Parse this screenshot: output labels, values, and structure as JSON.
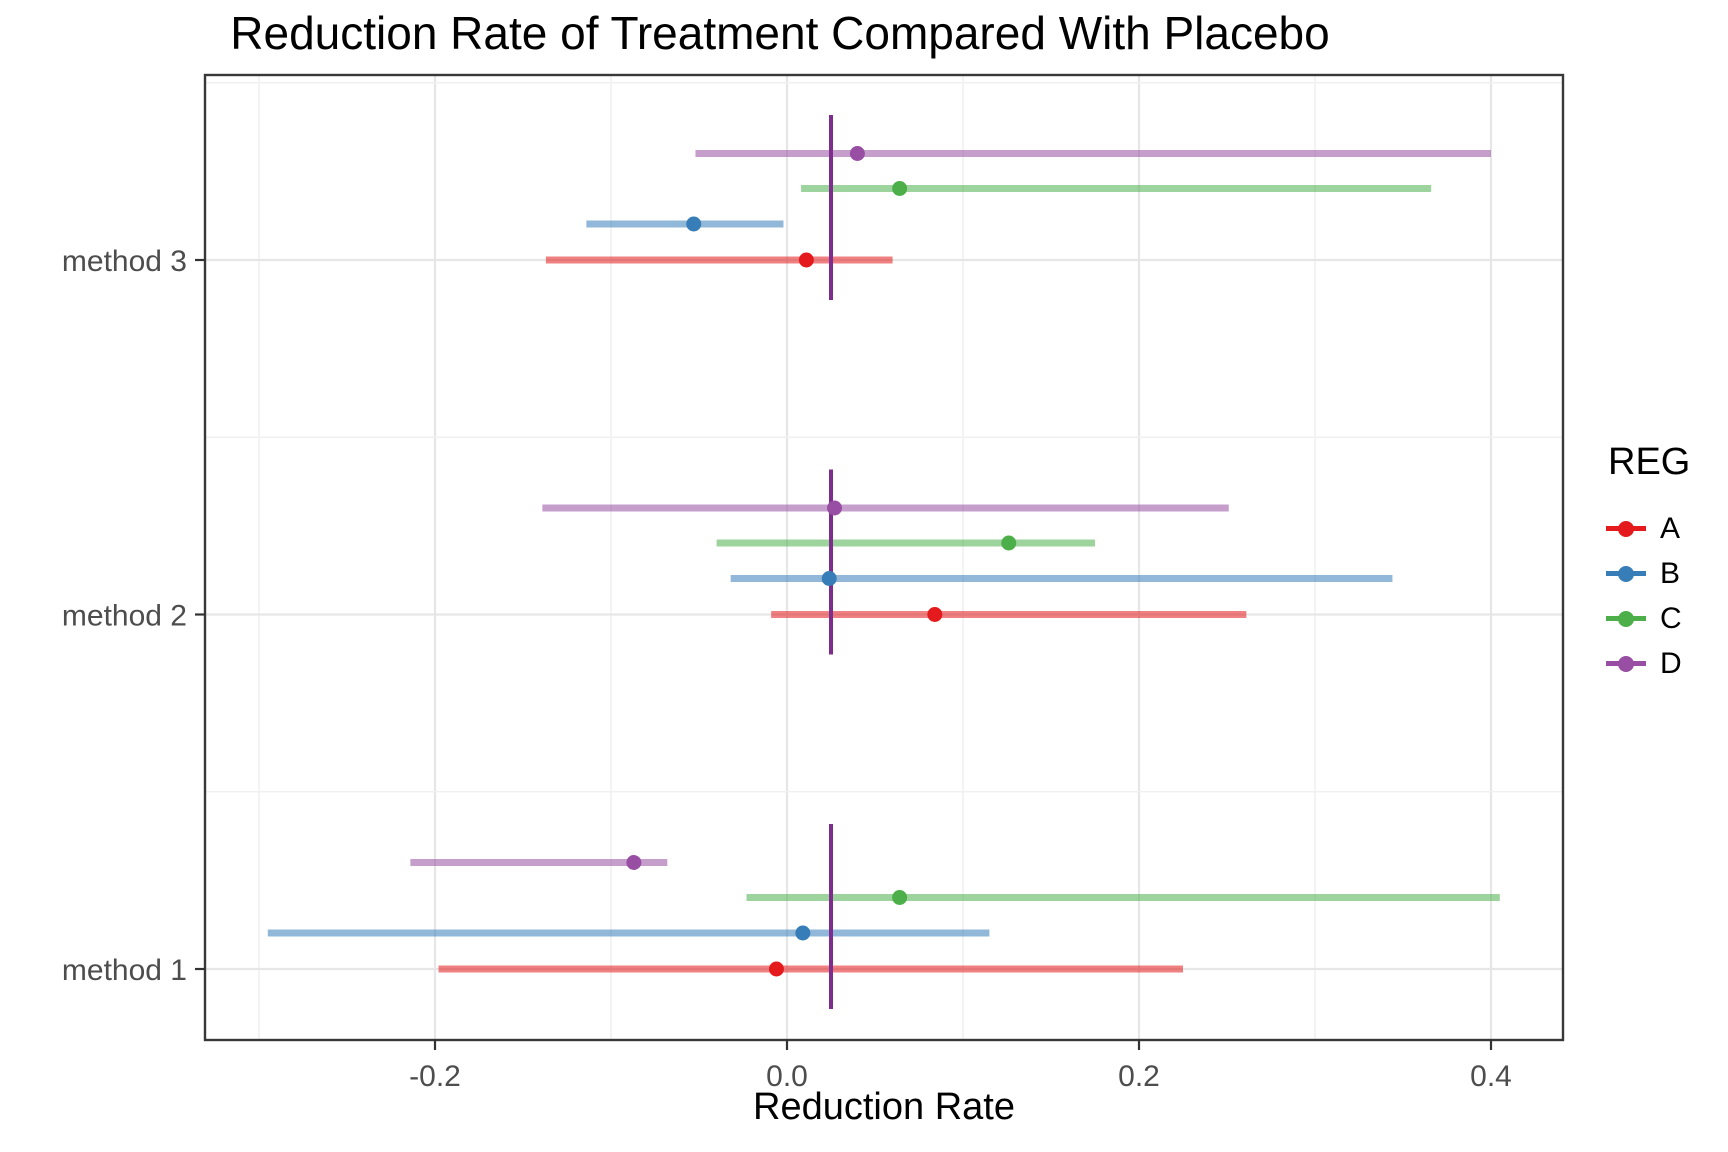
{
  "chart_data": {
    "type": "forest",
    "title": "Reduction Rate of Treatment Compared With Placebo",
    "xlabel": "Reduction Rate",
    "x_ticks": [
      -0.2,
      0.0,
      0.2,
      0.4
    ],
    "x_tick_labels": [
      "-0.2",
      "0.0",
      "0.2",
      "0.4"
    ],
    "x_minor_ticks": [
      -0.3,
      -0.1,
      0.1,
      0.3
    ],
    "xlim": [
      -0.331,
      0.441
    ],
    "categories": [
      "method 1",
      "method 2",
      "method 3"
    ],
    "grid": "on",
    "legend_position": "right",
    "legend": {
      "title": "REG",
      "entries": [
        {
          "label": "A",
          "color": "#E41A1C"
        },
        {
          "label": "B",
          "color": "#377EB8"
        },
        {
          "label": "C",
          "color": "#4DAF4A"
        },
        {
          "label": "D",
          "color": "#984EA3"
        }
      ]
    },
    "reference_line": {
      "value": 0.025,
      "color": "#7E2C8E"
    },
    "interval_opacity": 0.55,
    "rows": [
      {
        "method": "method 1",
        "reg": "A",
        "est": -0.006,
        "lo": -0.198,
        "hi": 0.225
      },
      {
        "method": "method 1",
        "reg": "B",
        "est": 0.009,
        "lo": -0.295,
        "hi": 0.115
      },
      {
        "method": "method 1",
        "reg": "C",
        "est": 0.064,
        "lo": -0.023,
        "hi": 0.405
      },
      {
        "method": "method 1",
        "reg": "D",
        "est": -0.087,
        "lo": -0.214,
        "hi": -0.068
      },
      {
        "method": "method 2",
        "reg": "A",
        "est": 0.084,
        "lo": -0.009,
        "hi": 0.261
      },
      {
        "method": "method 2",
        "reg": "B",
        "est": 0.024,
        "lo": -0.032,
        "hi": 0.344
      },
      {
        "method": "method 2",
        "reg": "C",
        "est": 0.126,
        "lo": -0.04,
        "hi": 0.175
      },
      {
        "method": "method 2",
        "reg": "D",
        "est": 0.027,
        "lo": -0.139,
        "hi": 0.251
      },
      {
        "method": "method 3",
        "reg": "A",
        "est": 0.011,
        "lo": -0.137,
        "hi": 0.06
      },
      {
        "method": "method 3",
        "reg": "B",
        "est": -0.053,
        "lo": -0.114,
        "hi": -0.002
      },
      {
        "method": "method 3",
        "reg": "C",
        "est": 0.064,
        "lo": 0.008,
        "hi": 0.366
      },
      {
        "method": "method 3",
        "reg": "D",
        "est": 0.04,
        "lo": -0.052,
        "hi": 0.4
      }
    ]
  }
}
